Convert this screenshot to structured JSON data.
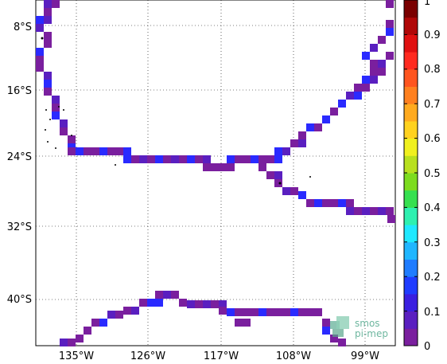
{
  "map": {
    "lat_labels": [
      "8°S",
      "16°S",
      "24°S",
      "32°S",
      "40°S"
    ],
    "lon_labels": [
      "135°W",
      "126°W",
      "117°W",
      "108°W",
      "99°W"
    ],
    "grid": "dotted"
  },
  "colorbar": {
    "tick_labels": [
      "0",
      "0.1",
      "0.2",
      "0.3",
      "0.4",
      "0.5",
      "0.6",
      "0.7",
      "0.8",
      "0.9",
      "1"
    ],
    "colors": [
      "#7a1f9e",
      "#5a1fc0",
      "#3a1fe0",
      "#1f3cff",
      "#1f7cff",
      "#1fb6ff",
      "#1fe8ff",
      "#2ef0b0",
      "#36e050",
      "#7ddc1f",
      "#b8e01f",
      "#f0f01f",
      "#ffd21f",
      "#ffaa1f",
      "#ff801f",
      "#ff551f",
      "#ff2a1f",
      "#e01010",
      "#b00808",
      "#7a0000"
    ]
  },
  "data_colors": {
    "purple": "#7a1f9e",
    "indigo": "#5a1fc0",
    "blue": "#2a2aff"
  },
  "logo": {
    "line1": "smos",
    "line2": "pi-mep"
  }
}
